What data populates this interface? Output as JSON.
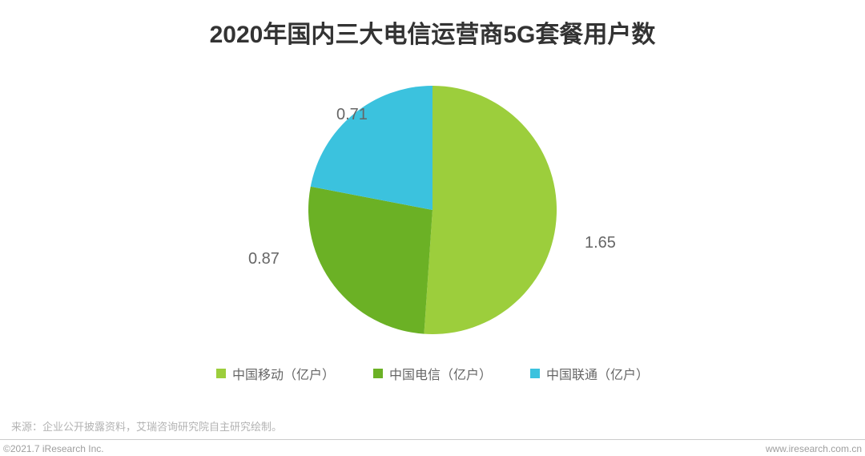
{
  "title": "2020年国内三大电信运营商5G套餐用户数",
  "pie_chart": {
    "type": "pie",
    "center_offset_x": 0,
    "radius": 155,
    "background_color": "#ffffff",
    "slices": [
      {
        "label": "中国移动（亿户）",
        "value": 1.65,
        "display": "1.65",
        "color": "#9cce3c"
      },
      {
        "label": "中国电信（亿户）",
        "value": 0.87,
        "display": "0.87",
        "color": "#6bb125"
      },
      {
        "label": "中国联通（亿户）",
        "value": 0.71,
        "display": "0.71",
        "color": "#3bc2de"
      }
    ],
    "label_fontsize": 20,
    "label_color": "#666666",
    "start_angle_deg": -90
  },
  "legend": {
    "items": [
      {
        "label": "中国移动（亿户）",
        "color": "#9cce3c"
      },
      {
        "label": "中国电信（亿户）",
        "color": "#6bb125"
      },
      {
        "label": "中国联通（亿户）",
        "color": "#3bc2de"
      }
    ],
    "fontsize": 16,
    "text_color": "#666666",
    "swatch_size": 12
  },
  "source_note": "来源：企业公开披露资料，艾瑞咨询研究院自主研究绘制。",
  "copyright": "©2021.7 iResearch Inc.",
  "site_url": "www.iresearch.com.cn",
  "colors": {
    "title_color": "#333333",
    "note_color": "#b3b3b3",
    "footer_text": "#9e9e9e",
    "footer_line": "#cccccc"
  }
}
